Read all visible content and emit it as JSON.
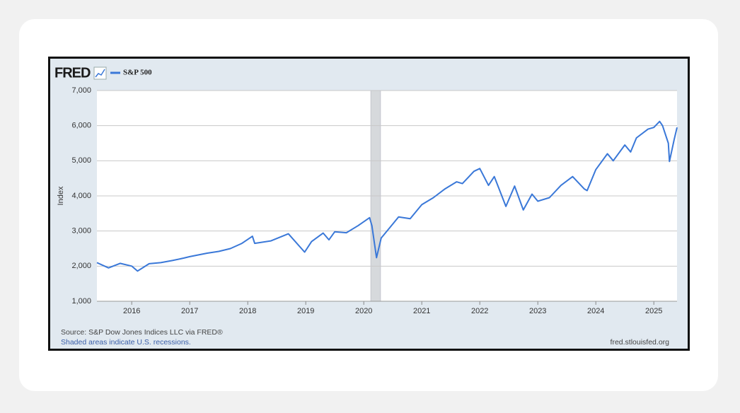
{
  "logo": "FRED",
  "chart_data": {
    "type": "line",
    "legend_position": "top-left",
    "ylabel": "Index",
    "x": [
      2015.4,
      2015.6,
      2015.8,
      2016.0,
      2016.1,
      2016.3,
      2016.5,
      2016.7,
      2016.9,
      2017.0,
      2017.3,
      2017.5,
      2017.7,
      2017.9,
      2018.08,
      2018.12,
      2018.4,
      2018.7,
      2018.98,
      2019.1,
      2019.3,
      2019.4,
      2019.5,
      2019.7,
      2019.9,
      2020.1,
      2020.14,
      2020.22,
      2020.3,
      2020.45,
      2020.6,
      2020.8,
      2021.0,
      2021.2,
      2021.4,
      2021.6,
      2021.7,
      2021.9,
      2022.0,
      2022.15,
      2022.25,
      2022.45,
      2022.6,
      2022.75,
      2022.9,
      2023.0,
      2023.2,
      2023.4,
      2023.6,
      2023.8,
      2023.85,
      2024.0,
      2024.2,
      2024.3,
      2024.5,
      2024.6,
      2024.7,
      2024.9,
      2025.0,
      2025.1,
      2025.15,
      2025.25,
      2025.27,
      2025.35,
      2025.4
    ],
    "series": [
      {
        "name": "S&P 500",
        "color": "#3a78d8",
        "values": [
          2100,
          1950,
          2080,
          2000,
          1860,
          2070,
          2100,
          2160,
          2230,
          2270,
          2370,
          2420,
          2500,
          2650,
          2850,
          2650,
          2720,
          2920,
          2400,
          2700,
          2940,
          2750,
          2980,
          2950,
          3150,
          3380,
          3150,
          2240,
          2800,
          3100,
          3400,
          3350,
          3750,
          3950,
          4200,
          4400,
          4350,
          4700,
          4780,
          4300,
          4550,
          3700,
          4280,
          3600,
          4050,
          3850,
          3950,
          4300,
          4550,
          4200,
          4150,
          4750,
          5200,
          5000,
          5450,
          5250,
          5650,
          5900,
          5950,
          6120,
          6000,
          5500,
          4980,
          5600,
          5950
        ]
      }
    ],
    "xlim": [
      2015.4,
      2025.4
    ],
    "xticks": [
      2016,
      2017,
      2018,
      2019,
      2020,
      2021,
      2022,
      2023,
      2024,
      2025
    ],
    "ylim": [
      1000,
      7000
    ],
    "yticks": [
      {
        "value": 1000,
        "label": "1,000"
      },
      {
        "value": 2000,
        "label": "2,000"
      },
      {
        "value": 3000,
        "label": "3,000"
      },
      {
        "value": 4000,
        "label": "4,000"
      },
      {
        "value": 5000,
        "label": "5,000"
      },
      {
        "value": 6000,
        "label": "6,000"
      },
      {
        "value": 7000,
        "label": "7,000"
      }
    ],
    "grid": true,
    "recessions": [
      [
        2020.12,
        2020.29
      ]
    ],
    "source": "Source: S&P Dow Jones Indices LLC via FRED®",
    "note": "Shaded areas indicate U.S. recessions.",
    "url": "fred.stlouisfed.org"
  }
}
